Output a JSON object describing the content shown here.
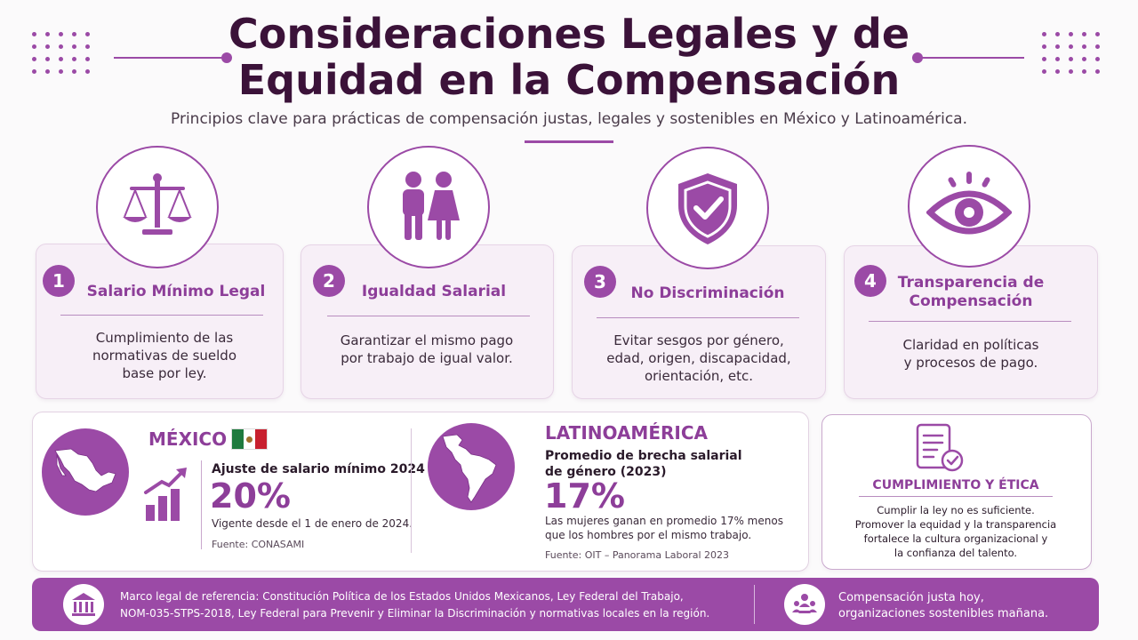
{
  "header": {
    "title_line1": "Consideraciones Legales y de",
    "title_line2": "Equidad en la Compensación",
    "subtitle": "Principios clave para prácticas de compensación justas, legales y sostenibles en México y Latinoamérica."
  },
  "cards": [
    {
      "number": "1",
      "icon": "scales-icon",
      "title": "Salario Mínimo Legal",
      "desc_lines": [
        "Cumplimiento de las",
        "normativas de sueldo",
        "base por ley."
      ]
    },
    {
      "number": "2",
      "icon": "people-icon",
      "title": "Igualdad Salarial",
      "desc_lines": [
        "Garantizar el mismo pago",
        "por trabajo de igual valor."
      ]
    },
    {
      "number": "3",
      "icon": "shield-check-icon",
      "title": "No Discriminación",
      "desc_lines": [
        "Evitar sesgos por género,",
        "edad, origen, discapacidad,",
        "orientación, etc."
      ]
    },
    {
      "number": "4",
      "icon": "eye-icon",
      "title_lines": [
        "Transparencia de",
        "Compensación"
      ],
      "desc_lines": [
        "Claridad en políticas",
        "y procesos de pago."
      ]
    }
  ],
  "mexico": {
    "heading": "MÉXICO",
    "stat_label": "Ajuste de salario mínimo 2024",
    "stat_value": "20%",
    "note": "Vigente desde el 1 de enero de 2024.",
    "source": "Fuente: CONASAMI"
  },
  "latam": {
    "heading": "LATINOAMÉRICA",
    "stat_label_lines": [
      "Promedio de brecha salarial",
      "de género (2023)"
    ],
    "stat_value": "17%",
    "note_lines": [
      "Las mujeres ganan en promedio 17% menos",
      "que los hombres por el mismo trabajo."
    ],
    "source": "Fuente: OIT – Panorama Laboral 2023"
  },
  "compliance": {
    "heading": "CUMPLIMIENTO Y ÉTICA",
    "text_lines": [
      "Cumplir la ley no es suficiente.",
      "Promover la equidad y la transparencia",
      "fortalece la cultura organizacional y",
      "la confianza del talento."
    ]
  },
  "footer": {
    "legal_lines": [
      "Marco legal de referencia: Constitución Política de los Estados Unidos Mexicanos, Ley Federal del Trabajo,",
      "NOM-035-STPS-2018, Ley Federal para Prevenir y Eliminar la Discriminación y normativas locales en la región."
    ],
    "slogan_lines": [
      "Compensación justa hoy,",
      "organizaciones sostenibles mañana."
    ]
  },
  "colors": {
    "accent": "#9b4aa6",
    "title": "#3b1239",
    "card_bg": "#f7eff7"
  }
}
